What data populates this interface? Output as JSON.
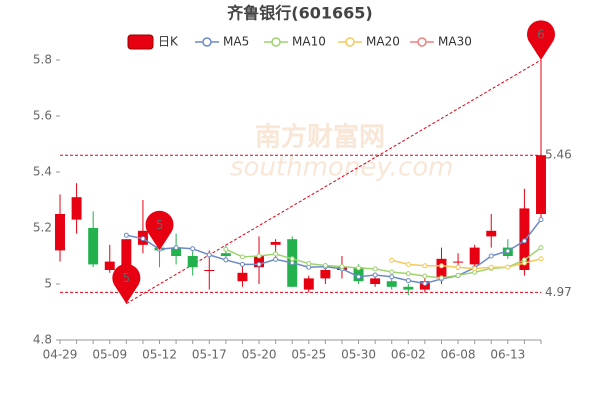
{
  "chart_data": {
    "type": "candlestick",
    "title": "齐鲁银行(601665)",
    "watermark": [
      "南方财富网",
      "southmoney.com"
    ],
    "categories": [
      "04-29",
      null,
      null,
      "05-09",
      null,
      null,
      "05-12",
      null,
      null,
      "05-17",
      null,
      null,
      "05-20",
      null,
      null,
      "05-25",
      null,
      null,
      "05-30",
      null,
      null,
      "06-02",
      null,
      null,
      "06-08",
      null,
      null,
      "06-13",
      null,
      null
    ],
    "candles": {
      "name": "日K",
      "up_color": "#e60012",
      "down_color": "#22b14c",
      "open": [
        5.12,
        5.23,
        5.2,
        5.05,
        4.99,
        5.14,
        5.13,
        5.13,
        5.1,
        5.05,
        5.11,
        5.01,
        5.06,
        5.14,
        5.16,
        4.98,
        5.02,
        5.05,
        5.06,
        5.0,
        5.01,
        4.99,
        4.98,
        5.02,
        5.08,
        5.07,
        5.17,
        5.13,
        5.05,
        5.25
      ],
      "close": [
        5.25,
        5.31,
        5.07,
        5.08,
        5.16,
        5.19,
        5.12,
        5.1,
        5.06,
        5.05,
        5.1,
        5.04,
        5.1,
        5.15,
        4.99,
        5.02,
        5.05,
        5.06,
        5.01,
        5.02,
        4.99,
        4.98,
        5.01,
        5.09,
        5.08,
        5.13,
        5.19,
        5.1,
        5.27,
        5.46
      ],
      "high": [
        5.32,
        5.36,
        5.26,
        5.14,
        5.16,
        5.3,
        5.2,
        5.18,
        5.12,
        5.12,
        5.14,
        5.07,
        5.17,
        5.16,
        5.17,
        5.03,
        5.07,
        5.1,
        5.07,
        5.04,
        5.02,
        5.0,
        5.02,
        5.13,
        5.11,
        5.14,
        5.25,
        5.16,
        5.34,
        5.8
      ],
      "low": [
        5.08,
        5.18,
        5.06,
        5.04,
        4.93,
        5.11,
        5.06,
        5.07,
        5.03,
        4.98,
        5.08,
        4.99,
        5.0,
        5.08,
        4.99,
        4.97,
        5.0,
        5.02,
        5.0,
        4.99,
        4.98,
        4.96,
        4.97,
        5.0,
        5.05,
        5.05,
        5.13,
        5.09,
        5.03,
        5.23
      ]
    },
    "series": [
      {
        "name": "MA5",
        "color": "#6c8ac6",
        "values": [
          null,
          null,
          null,
          null,
          5.174,
          5.162,
          5.124,
          5.13,
          5.126,
          5.104,
          5.086,
          5.07,
          5.07,
          5.088,
          5.076,
          5.06,
          5.062,
          5.054,
          5.026,
          5.032,
          5.026,
          5.012,
          5.002,
          5.018,
          5.03,
          5.058,
          5.1,
          5.118,
          5.154,
          5.23
        ]
      },
      {
        "name": "MA10",
        "color": "#9ed26e",
        "values": [
          null,
          null,
          null,
          null,
          null,
          null,
          null,
          null,
          null,
          null,
          5.124,
          5.097,
          5.1,
          5.107,
          5.09,
          5.073,
          5.066,
          5.062,
          5.057,
          5.054,
          5.043,
          5.037,
          5.028,
          5.022,
          5.031,
          5.042,
          5.056,
          5.06,
          5.086,
          5.13
        ]
      },
      {
        "name": "MA20",
        "color": "#f5c95a",
        "values": [
          null,
          null,
          null,
          null,
          null,
          null,
          null,
          null,
          null,
          null,
          null,
          null,
          null,
          null,
          null,
          null,
          null,
          null,
          null,
          null,
          5.085,
          5.07,
          5.065,
          5.065,
          5.06,
          5.055,
          5.06,
          5.06,
          5.075,
          5.09
        ]
      },
      {
        "name": "MA30",
        "color": "#f08080",
        "values": [
          null,
          null,
          null,
          null,
          null,
          null,
          null,
          null,
          null,
          null,
          null,
          null,
          null,
          null,
          null,
          null,
          null,
          null,
          null,
          null,
          null,
          null,
          null,
          null,
          null,
          null,
          null,
          null,
          null,
          null
        ]
      }
    ],
    "ylim": [
      4.8,
      5.8
    ],
    "yticks": [
      4.8,
      5,
      5.2,
      5.4,
      5.6,
      5.8
    ],
    "reference_lines": [
      {
        "value": 5.46,
        "label": "5.46"
      },
      {
        "value": 4.97,
        "label": "4.97"
      }
    ],
    "reference_color": "#e60012",
    "trend_line": {
      "x0": 4,
      "y0": 4.93,
      "x1": 29,
      "y1": 5.8
    },
    "annotations": [
      {
        "index": 4,
        "value": 4.93,
        "label": "5"
      },
      {
        "index": 6,
        "value": 5.12,
        "label": "5"
      },
      {
        "index": 29,
        "value": 5.8,
        "label": "6"
      }
    ]
  }
}
